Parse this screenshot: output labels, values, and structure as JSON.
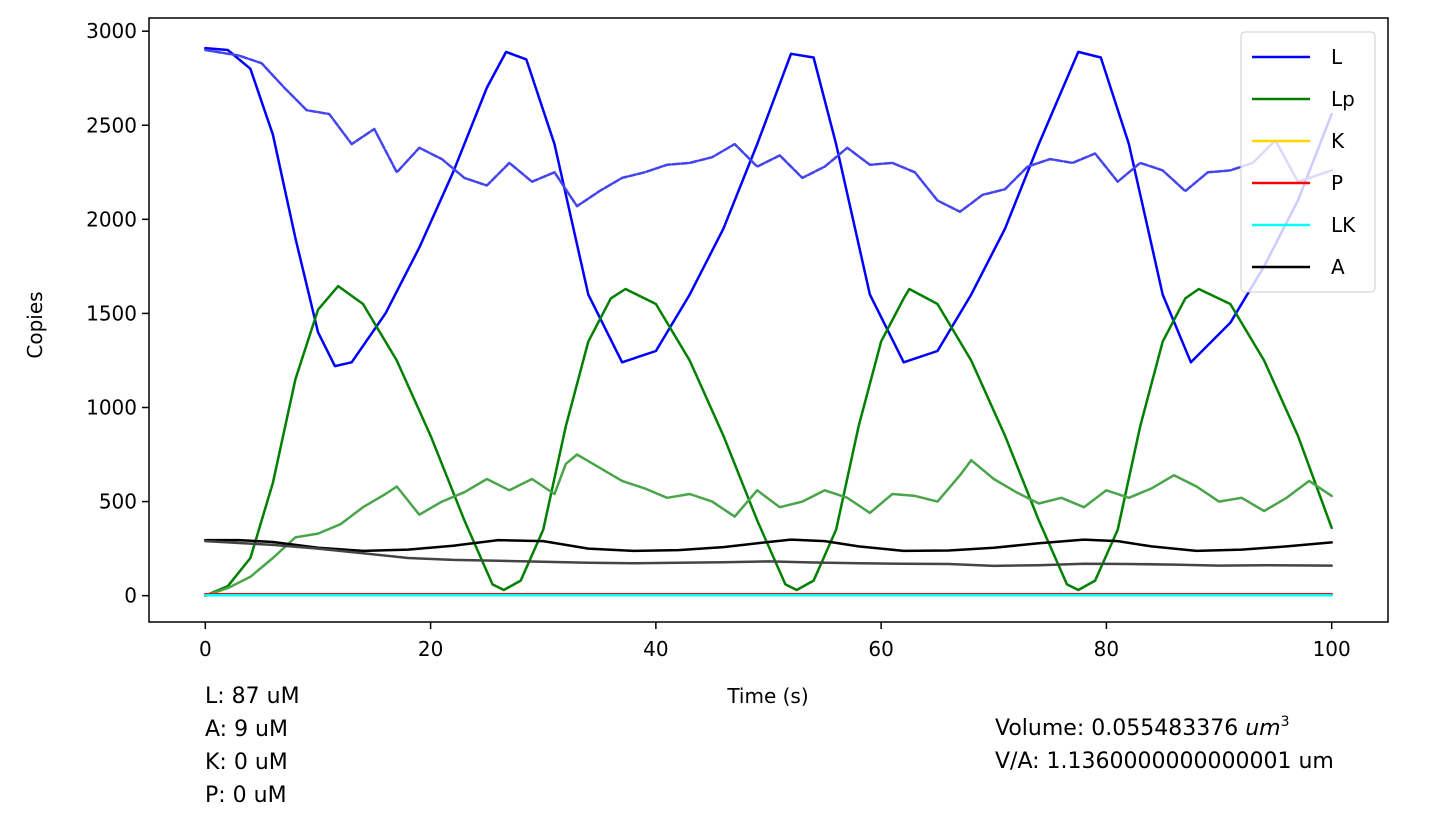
{
  "chart_data": {
    "type": "line",
    "xlabel": "Time (s)",
    "ylabel": "Copies",
    "xlim": [
      -5,
      105
    ],
    "ylim": [
      -140,
      3070
    ],
    "xticks": [
      0,
      20,
      40,
      60,
      80,
      100
    ],
    "yticks": [
      0,
      500,
      1000,
      1500,
      2000,
      2500,
      3000
    ],
    "grid": false,
    "legend_position": "top-right",
    "legend": [
      {
        "label": "L",
        "color": "#0000ff"
      },
      {
        "label": "Lp",
        "color": "#008000"
      },
      {
        "label": "K",
        "color": "#ffd700"
      },
      {
        "label": "P",
        "color": "#ff0000"
      },
      {
        "label": "LK",
        "color": "#00ffff"
      },
      {
        "label": "A",
        "color": "#000000"
      }
    ],
    "series": [
      {
        "name": "L",
        "style": "solid",
        "color": "#0000ff",
        "x": [
          0,
          2,
          4,
          6,
          8,
          10,
          11.5,
          13,
          16,
          19,
          22,
          25,
          26.7,
          28.5,
          31,
          34,
          37,
          40,
          43,
          46,
          49,
          52,
          54,
          56,
          59,
          62,
          65,
          68,
          71,
          74,
          77.5,
          79.5,
          82,
          85,
          87.5,
          91,
          94,
          97,
          100
        ],
        "y": [
          2910,
          2900,
          2800,
          2450,
          1900,
          1400,
          1220,
          1240,
          1500,
          1850,
          2250,
          2700,
          2890,
          2850,
          2400,
          1600,
          1240,
          1300,
          1600,
          1950,
          2400,
          2880,
          2860,
          2400,
          1600,
          1240,
          1300,
          1600,
          1950,
          2400,
          2890,
          2860,
          2400,
          1600,
          1240,
          1450,
          1750,
          2100,
          2560
        ]
      },
      {
        "name": "L-stochastic",
        "style": "dashed",
        "color": "#4444ee",
        "x": [
          0,
          3,
          5,
          7,
          9,
          11,
          13,
          15,
          17,
          19,
          21,
          23,
          25,
          27,
          29,
          31,
          33,
          35,
          37,
          39,
          41,
          43,
          45,
          47,
          49,
          51,
          53,
          55,
          57,
          59,
          61,
          63,
          65,
          67,
          69,
          71,
          73,
          75,
          77,
          79,
          81,
          83,
          85,
          87,
          89,
          91,
          93,
          95,
          97,
          100
        ],
        "y": [
          2900,
          2870,
          2830,
          2700,
          2580,
          2560,
          2400,
          2480,
          2250,
          2380,
          2320,
          2220,
          2180,
          2300,
          2200,
          2250,
          2070,
          2150,
          2220,
          2250,
          2290,
          2300,
          2330,
          2400,
          2280,
          2340,
          2220,
          2280,
          2380,
          2290,
          2300,
          2250,
          2100,
          2040,
          2130,
          2160,
          2280,
          2320,
          2300,
          2350,
          2200,
          2300,
          2260,
          2150,
          2250,
          2260,
          2300,
          2420,
          2200,
          2260
        ]
      },
      {
        "name": "Lp",
        "style": "solid",
        "color": "#008000",
        "x": [
          0,
          2,
          4,
          6,
          8,
          10,
          11.8,
          14,
          17,
          20,
          23,
          25.5,
          26.5,
          28,
          30,
          32,
          34,
          36,
          37.3,
          40,
          43,
          46,
          49,
          51.5,
          52.5,
          54,
          56,
          58,
          60,
          62,
          62.5,
          65,
          68,
          71,
          74,
          76.5,
          77.5,
          79,
          81,
          83,
          85,
          87,
          88.2,
          91,
          94,
          97,
          100
        ],
        "y": [
          0,
          50,
          200,
          600,
          1150,
          1520,
          1645,
          1550,
          1250,
          850,
          400,
          60,
          30,
          80,
          350,
          900,
          1350,
          1580,
          1630,
          1550,
          1250,
          850,
          400,
          60,
          30,
          80,
          350,
          900,
          1350,
          1580,
          1630,
          1550,
          1250,
          850,
          400,
          60,
          30,
          80,
          350,
          900,
          1350,
          1580,
          1630,
          1550,
          1250,
          850,
          360
        ]
      },
      {
        "name": "Lp-stochastic",
        "style": "solid",
        "color": "#4aa54a",
        "x": [
          0,
          2,
          4,
          6,
          8,
          10,
          12,
          14,
          16,
          17,
          19,
          21,
          23,
          25,
          27,
          29,
          31,
          32,
          33,
          35,
          37,
          39,
          41,
          43,
          45,
          47,
          49,
          51,
          53,
          55,
          57,
          59,
          61,
          63,
          65,
          67,
          68,
          70,
          72,
          74,
          76,
          78,
          80,
          82,
          84,
          86,
          88,
          90,
          92,
          94,
          96,
          98,
          100
        ],
        "y": [
          0,
          40,
          100,
          200,
          310,
          330,
          380,
          470,
          540,
          580,
          430,
          500,
          550,
          620,
          560,
          620,
          540,
          700,
          750,
          680,
          610,
          570,
          520,
          540,
          500,
          420,
          560,
          470,
          500,
          560,
          520,
          440,
          540,
          530,
          500,
          640,
          720,
          620,
          550,
          490,
          520,
          470,
          560,
          520,
          570,
          640,
          580,
          500,
          520,
          450,
          520,
          610,
          530
        ]
      },
      {
        "name": "A",
        "style": "solid",
        "color": "#000000",
        "x": [
          0,
          3,
          6,
          10,
          14,
          18,
          22,
          26,
          30,
          34,
          38,
          42,
          46,
          50,
          52,
          55,
          58,
          62,
          66,
          70,
          74,
          78,
          81,
          84,
          88,
          92,
          96,
          100
        ],
        "y": [
          295,
          295,
          285,
          255,
          238,
          245,
          265,
          295,
          290,
          250,
          238,
          242,
          258,
          285,
          298,
          290,
          262,
          238,
          240,
          255,
          278,
          298,
          290,
          262,
          238,
          245,
          262,
          283
        ]
      },
      {
        "name": "A-stochastic",
        "style": "solid",
        "color": "#444444",
        "x": [
          0,
          3,
          6,
          10,
          14,
          18,
          22,
          26,
          30,
          34,
          38,
          42,
          46,
          50,
          54,
          58,
          62,
          66,
          70,
          74,
          78,
          82,
          86,
          90,
          94,
          100
        ],
        "y": [
          290,
          280,
          270,
          250,
          225,
          200,
          190,
          185,
          180,
          175,
          172,
          175,
          178,
          182,
          176,
          172,
          170,
          168,
          158,
          162,
          170,
          168,
          165,
          160,
          162,
          160
        ]
      },
      {
        "name": "K",
        "style": "solid",
        "color": "#ffd700",
        "x": [
          0,
          100
        ],
        "y": [
          5,
          5
        ]
      },
      {
        "name": "P",
        "style": "solid",
        "color": "#ff0000",
        "x": [
          0,
          100
        ],
        "y": [
          8,
          8
        ]
      },
      {
        "name": "LK",
        "style": "solid",
        "color": "#00ffff",
        "x": [
          0,
          100
        ],
        "y": [
          2,
          2
        ]
      }
    ]
  },
  "annotations": {
    "left": [
      "L: 87 uM",
      "A: 9 uM",
      "K: 0 uM",
      "P: 0 uM"
    ],
    "volume_prefix": "Volume: 0.055483376 ",
    "volume_unit": "um",
    "volume_exp": "3",
    "va_line": "V/A: 1.1360000000000001 um"
  }
}
